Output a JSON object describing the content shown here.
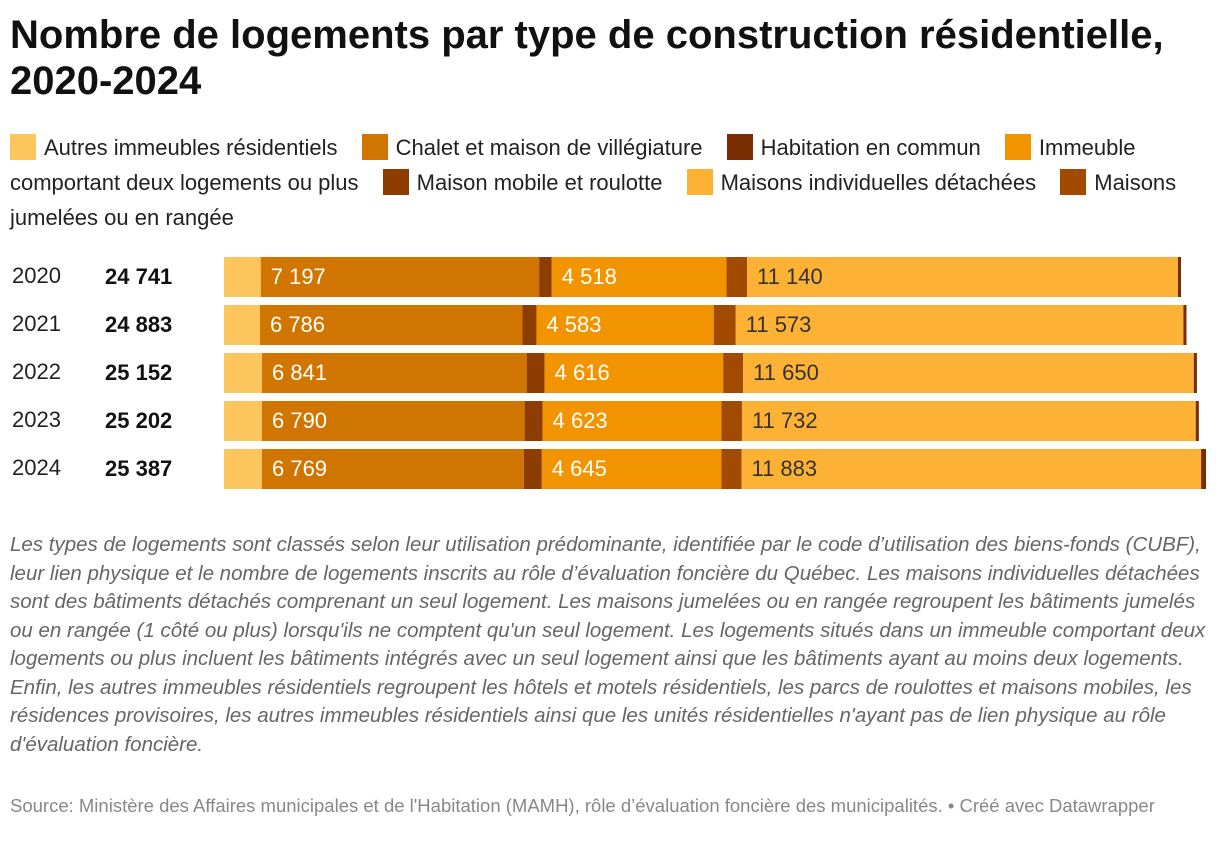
{
  "chart_data": {
    "type": "stacked_bar_horizontal",
    "title": "Nombre de logements par type de construction résidentielle, 2020-2024",
    "categories": [
      "2020",
      "2021",
      "2022",
      "2023",
      "2024"
    ],
    "totals": [
      24741,
      24883,
      25152,
      25202,
      25387
    ],
    "total_labels": [
      "24 741",
      "24 883",
      "25 152",
      "25 202",
      "25 387"
    ],
    "series": [
      {
        "name": "Autres immeubles résidentiels",
        "color": "#fdc65c",
        "values": [
          950,
          930,
          983,
          982,
          982
        ]
      },
      {
        "name": "Chalet et maison de villégiature",
        "color": "#cf7500",
        "values": [
          7197,
          6786,
          6841,
          6790,
          6769
        ],
        "value_labels": [
          "7 197",
          "6 786",
          "6 841",
          "6 790",
          "6 769"
        ]
      },
      {
        "name": "Maison mobile et roulotte",
        "color": "#8e3d00",
        "values": [
          327,
          362,
          465,
          465,
          465
        ]
      },
      {
        "name": "Immeuble comportant deux logements ou plus",
        "color": "#f29400",
        "values": [
          4518,
          4583,
          4616,
          4623,
          4645
        ],
        "value_labels": [
          "4 518",
          "4 583",
          "4 616",
          "4 623",
          "4 645"
        ]
      },
      {
        "name": "Maisons jumelées ou en rangée",
        "color": "#a14a00",
        "values": [
          530,
          569,
          517,
          530,
          517
        ]
      },
      {
        "name": "Maisons individuelles détachées",
        "color": "#fdb235",
        "values": [
          11140,
          11573,
          11650,
          11732,
          11883
        ],
        "value_labels": [
          "11 140",
          "11 573",
          "11 650",
          "11 732",
          "11 883"
        ]
      },
      {
        "name": "Habitation en commun",
        "color": "#7a2e00",
        "values": [
          79,
          80,
          80,
          80,
          126
        ]
      }
    ],
    "legend_order": [
      0,
      1,
      6,
      3,
      2,
      5,
      4
    ],
    "notes": "Les types de logements sont classés selon leur utilisation prédominante, identifiée par le code d’utilisation des biens-fonds (CUBF), leur lien physique et le nombre de logements inscrits au rôle d’évaluation foncière du Québec. Les maisons individuelles détachées sont des bâtiments détachés comprenant un seul logement. Les maisons jumelées ou en rangée regroupent les bâtiments jumelés ou en rangée (1 côté ou plus) lorsqu'ils ne comptent qu'un seul logement. Les logements situés dans un immeuble comportant deux logements ou plus incluent les bâtiments intégrés avec un seul logement ainsi que les bâtiments ayant au moins deux logements. Enfin, les autres immeubles résidentiels regroupent les hôtels et motels résidentiels, les parcs de roulottes et maisons mobiles, les résidences provisoires, les autres immeubles résidentiels ainsi que les unités résidentielles n'ayant pas de lien physique au rôle d'évaluation foncière.",
    "source": "Source: Ministère des Affaires municipales et de l'Habitation (MAMH), rôle d’évaluation foncière des municipalités. • Créé avec Datawrapper"
  }
}
